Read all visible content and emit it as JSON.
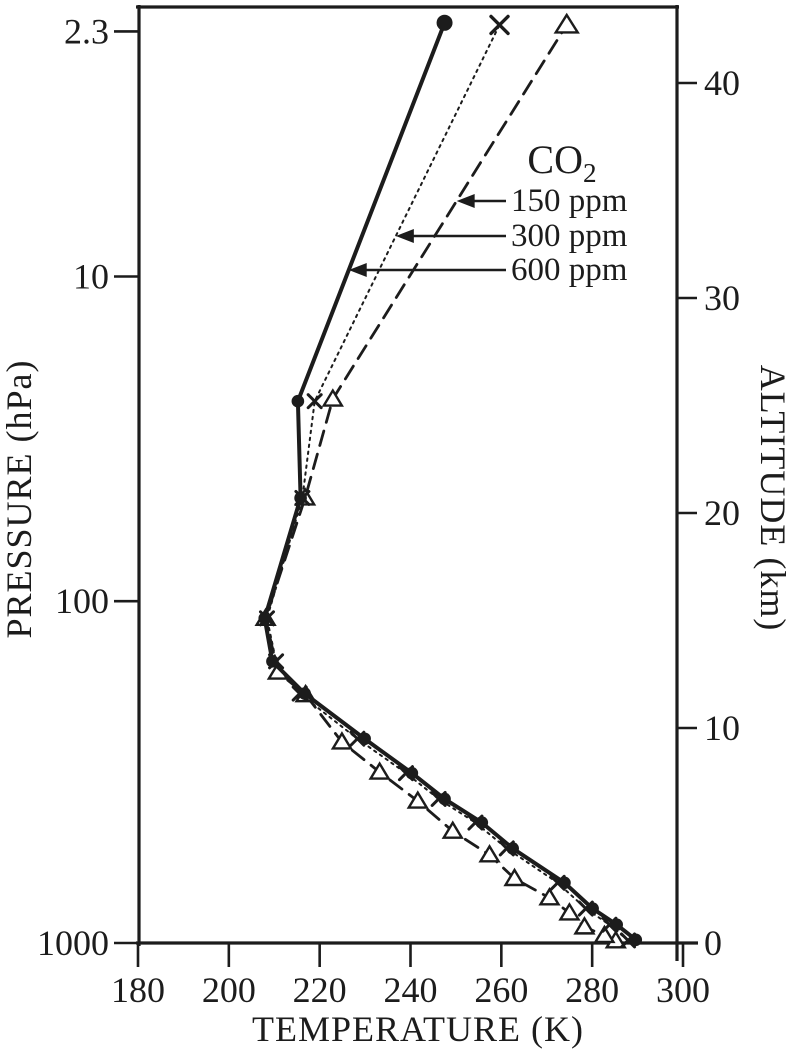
{
  "figure": {
    "background": "#ffffff",
    "ink_color": "#1c1c1c"
  },
  "chart_data": {
    "type": "line",
    "title": "",
    "xlabel": "TEMPERATURE (K)",
    "ylabel_left": "PRESSURE (hPa)",
    "ylabel_right": "ALTITUDE (km)",
    "x_axis": {
      "label": "TEMPERATURE (K)",
      "ticks": [
        180,
        200,
        220,
        240,
        260,
        280,
        300
      ],
      "range": [
        180,
        300
      ],
      "units": "K"
    },
    "left_axis": {
      "label": "PRESSURE (hPa)",
      "scale": "log",
      "units": "hPa",
      "ticks": [
        {
          "label": "2.3",
          "alt_km": 42.4
        },
        {
          "label": "10",
          "alt_km": 31.0
        },
        {
          "label": "100",
          "alt_km": 15.9
        },
        {
          "label": "1000",
          "alt_km": 0
        }
      ]
    },
    "right_axis": {
      "label": "ALTITUDE (km)",
      "ticks": [
        0,
        10,
        20,
        30,
        40
      ],
      "range": [
        0,
        43.6
      ],
      "units": "km"
    },
    "legend": {
      "title_main": "CO",
      "title_sub": "2",
      "entries": [
        {
          "label": "150 ppm",
          "series": "150 ppm"
        },
        {
          "label": "300 ppm",
          "series": "300 ppm"
        },
        {
          "label": "600 ppm",
          "series": "600 ppm"
        }
      ]
    },
    "series": [
      {
        "name": "600 ppm",
        "line": "solid",
        "marker": "filled-circle",
        "points_t_alt": [
          [
            289.6,
            0.15
          ],
          [
            285.4,
            0.85
          ],
          [
            280.1,
            1.6
          ],
          [
            273.9,
            2.8
          ],
          [
            262.5,
            4.4
          ],
          [
            255.7,
            5.6
          ],
          [
            247.5,
            6.7
          ],
          [
            240.3,
            7.9
          ],
          [
            229.9,
            9.5
          ],
          [
            216.7,
            11.6
          ],
          [
            209.6,
            13.1
          ],
          [
            207.9,
            15.1
          ],
          [
            215.8,
            20.7
          ],
          [
            215.2,
            25.2
          ],
          [
            247.5,
            42.8
          ]
        ]
      },
      {
        "name": "300 ppm",
        "line": "dotted",
        "marker": "x",
        "points_t_alt": [
          [
            287.9,
            0.12
          ],
          [
            283.8,
            0.85
          ],
          [
            278.6,
            1.6
          ],
          [
            272.4,
            2.8
          ],
          [
            261.2,
            4.4
          ],
          [
            254.3,
            5.6
          ],
          [
            246.2,
            6.7
          ],
          [
            239.0,
            7.9
          ],
          [
            228.3,
            9.5
          ],
          [
            215.6,
            11.6
          ],
          [
            210.4,
            13.1
          ],
          [
            208.4,
            15.1
          ],
          [
            216.2,
            20.7
          ],
          [
            218.9,
            25.2
          ],
          [
            259.6,
            42.7
          ]
        ]
      },
      {
        "name": "150 ppm",
        "line": "dashed",
        "marker": "open-triangle",
        "points_t_alt": [
          [
            285.2,
            0.1
          ],
          [
            282.7,
            0.35
          ],
          [
            278.3,
            0.75
          ],
          [
            275.0,
            1.4
          ],
          [
            270.6,
            2.1
          ],
          [
            262.9,
            3.0
          ],
          [
            257.4,
            4.1
          ],
          [
            249.3,
            5.2
          ],
          [
            241.6,
            6.6
          ],
          [
            233.2,
            7.95
          ],
          [
            224.9,
            9.35
          ],
          [
            216.9,
            11.55
          ],
          [
            210.8,
            12.6
          ],
          [
            208.1,
            15.1
          ],
          [
            216.8,
            20.7
          ],
          [
            222.9,
            25.3
          ],
          [
            274.4,
            42.7
          ]
        ]
      }
    ]
  }
}
